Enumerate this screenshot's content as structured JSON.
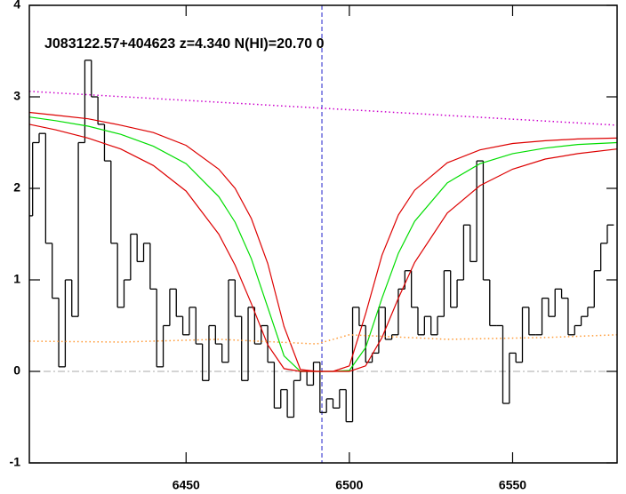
{
  "chart_data": {
    "type": "line",
    "title": "J083122.57+404623 z=4.340 N(HI)=20.70 0",
    "xlim": [
      6402,
      6582
    ],
    "ylim": [
      -1,
      4
    ],
    "xticks": [
      6450,
      6500,
      6550
    ],
    "yticks": [
      -1,
      0,
      1,
      2,
      3,
      4
    ],
    "grid": false,
    "zero_line": 0,
    "center_line": 6491.6,
    "series": [
      {
        "color": "#000000",
        "style": "step",
        "x": [
          6402,
          6404,
          6406,
          6408,
          6410,
          6412,
          6414,
          6416,
          6418,
          6420,
          6422,
          6424,
          6426,
          6428,
          6430,
          6432,
          6434,
          6436,
          6438,
          6440,
          6442,
          6444,
          6446,
          6448,
          6450,
          6452,
          6454,
          6456,
          6458,
          6460,
          6462,
          6464,
          6466,
          6468,
          6470,
          6472,
          6474,
          6476,
          6478,
          6480,
          6482,
          6484,
          6486,
          6488,
          6490,
          6492,
          6494,
          6496,
          6498,
          6500,
          6502,
          6504,
          6506,
          6508,
          6510,
          6512,
          6514,
          6516,
          6518,
          6520,
          6522,
          6524,
          6526,
          6528,
          6530,
          6532,
          6534,
          6536,
          6538,
          6540,
          6542,
          6544,
          6546,
          6548,
          6550,
          6552,
          6554,
          6556,
          6558,
          6560,
          6562,
          6564,
          6566,
          6568,
          6570,
          6572,
          6574,
          6576,
          6578,
          6580
        ],
        "values": [
          1.7,
          2.5,
          2.6,
          1.4,
          0.8,
          0.05,
          1.0,
          0.6,
          2.5,
          3.4,
          3.0,
          2.7,
          2.3,
          1.4,
          0.7,
          1.0,
          1.5,
          1.2,
          1.4,
          0.9,
          0.05,
          0.5,
          0.9,
          0.6,
          0.4,
          0.7,
          0.3,
          -0.1,
          0.5,
          0.3,
          0.1,
          1.0,
          0.6,
          -0.1,
          0.7,
          0.3,
          0.5,
          0.1,
          -0.4,
          -0.2,
          -0.5,
          -0.1,
          0.0,
          -0.15,
          0.1,
          -0.45,
          -0.3,
          -0.4,
          -0.2,
          -0.55,
          0.7,
          0.5,
          0.1,
          0.2,
          0.7,
          0.35,
          0.4,
          0.9,
          1.1,
          0.7,
          0.4,
          0.6,
          0.4,
          0.6,
          1.1,
          0.7,
          1.0,
          1.6,
          1.2,
          2.3,
          1.0,
          0.5,
          0.5,
          -0.35,
          0.2,
          0.1,
          0.7,
          0.4,
          0.4,
          0.8,
          0.6,
          0.9,
          0.8,
          0.4,
          0.5,
          0.6,
          0.7,
          1.1,
          1.4,
          1.6
        ]
      },
      {
        "color": "#00dd00",
        "style": "solid",
        "x": [
          6402,
          6410,
          6420,
          6430,
          6440,
          6450,
          6460,
          6465,
          6470,
          6475,
          6480,
          6485,
          6490,
          6495,
          6500,
          6505,
          6510,
          6515,
          6520,
          6530,
          6540,
          6550,
          6560,
          6570,
          6582
        ],
        "values": [
          2.78,
          2.74,
          2.68,
          2.59,
          2.46,
          2.27,
          1.91,
          1.63,
          1.23,
          0.7,
          0.17,
          0.0,
          0,
          0,
          0.01,
          0.26,
          0.8,
          1.29,
          1.64,
          2.06,
          2.27,
          2.38,
          2.44,
          2.48,
          2.5
        ]
      },
      {
        "color": "#dd0000",
        "style": "solid",
        "x": [
          6402,
          6410,
          6420,
          6430,
          6440,
          6450,
          6460,
          6465,
          6470,
          6475,
          6480,
          6485,
          6490,
          6495,
          6500,
          6505,
          6510,
          6515,
          6520,
          6530,
          6540,
          6550,
          6560,
          6570,
          6582
        ],
        "values": [
          2.83,
          2.8,
          2.76,
          2.69,
          2.61,
          2.47,
          2.21,
          2.0,
          1.67,
          1.18,
          0.49,
          0.02,
          0,
          0,
          0.06,
          0.63,
          1.27,
          1.71,
          1.98,
          2.28,
          2.42,
          2.49,
          2.52,
          2.54,
          2.55
        ]
      },
      {
        "color": "#dd0000",
        "style": "solid",
        "x": [
          6402,
          6410,
          6420,
          6430,
          6440,
          6450,
          6460,
          6465,
          6470,
          6475,
          6480,
          6485,
          6490,
          6495,
          6500,
          6505,
          6510,
          6515,
          6520,
          6530,
          6540,
          6550,
          6560,
          6570,
          6582
        ],
        "values": [
          2.7,
          2.64,
          2.55,
          2.43,
          2.25,
          1.97,
          1.5,
          1.16,
          0.74,
          0.29,
          0.03,
          0,
          0,
          0,
          0,
          0.06,
          0.37,
          0.8,
          1.19,
          1.73,
          2.03,
          2.21,
          2.32,
          2.38,
          2.43
        ]
      },
      {
        "color": "#cc00cc",
        "style": "dotted",
        "x": [
          6402,
          6582
        ],
        "values": [
          3.06,
          2.69
        ]
      },
      {
        "color": "#ff9933",
        "style": "dotted",
        "x": [
          6402,
          6430,
          6460,
          6490,
          6500,
          6530,
          6560,
          6582
        ],
        "values": [
          0.33,
          0.32,
          0.35,
          0.3,
          0.4,
          0.35,
          0.37,
          0.4
        ]
      }
    ]
  }
}
